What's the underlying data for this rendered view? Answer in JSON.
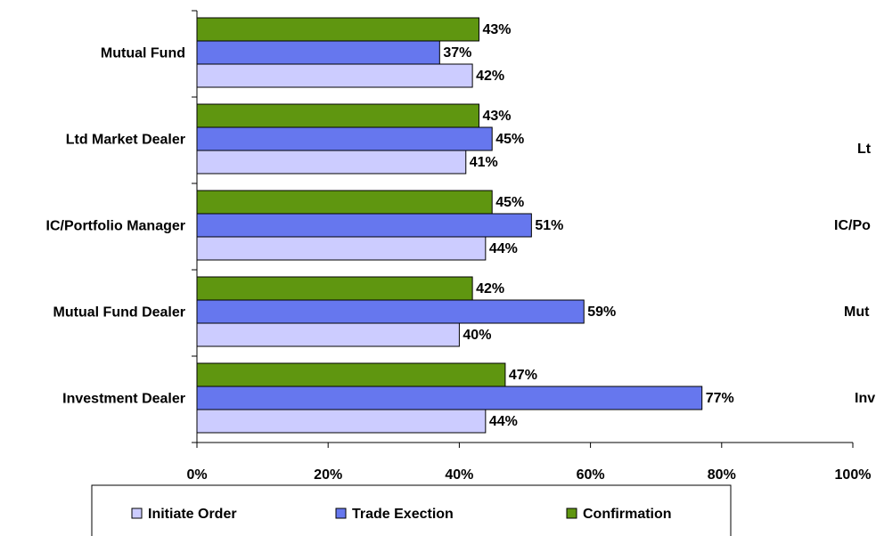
{
  "chart_data": {
    "type": "hbar",
    "categories": [
      "Mutual Fund",
      "Ltd Market Dealer",
      "IC/Portfolio Manager",
      "Mutual Fund Dealer",
      "Investment Dealer"
    ],
    "series": [
      {
        "name": "Initiate Order",
        "color": "#ccccff",
        "values": [
          42,
          41,
          44,
          40,
          44
        ],
        "value_labels": [
          "42%",
          "41%",
          "44%",
          "40%",
          "44%"
        ]
      },
      {
        "name": "Trade Exection",
        "color": "#6677ee",
        "values": [
          37,
          45,
          51,
          59,
          77
        ],
        "value_labels": [
          "37%",
          "45%",
          "51%",
          "59%",
          "77%"
        ]
      },
      {
        "name": "Confirmation",
        "color": "#5f9610",
        "values": [
          43,
          43,
          45,
          42,
          47
        ],
        "value_labels": [
          "43%",
          "43%",
          "45%",
          "42%",
          "47%"
        ]
      }
    ],
    "xlim": [
      0,
      100
    ],
    "xticks": [
      {
        "value": 0,
        "label": "0%"
      },
      {
        "value": 20,
        "label": "20%"
      },
      {
        "value": 40,
        "label": "40%"
      },
      {
        "value": 60,
        "label": "60%"
      },
      {
        "value": 80,
        "label": "80%"
      },
      {
        "value": 100,
        "label": "100%"
      }
    ],
    "legend": "bottom"
  },
  "clipped_chart": {
    "categories": [
      "Lt",
      "IC/Po",
      "Mut",
      "Inv"
    ]
  }
}
